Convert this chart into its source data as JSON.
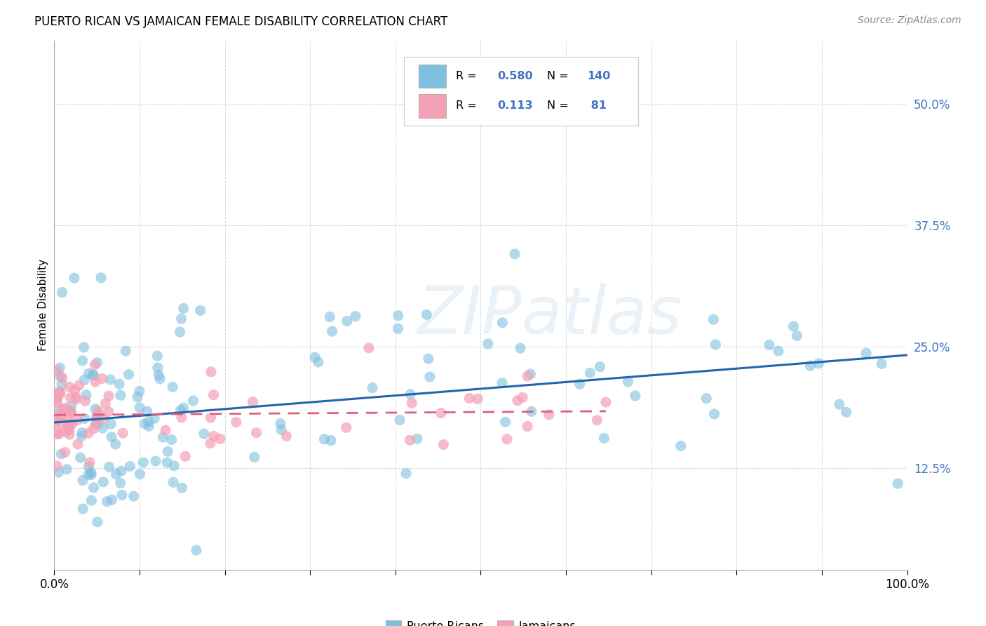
{
  "title": "PUERTO RICAN VS JAMAICAN FEMALE DISABILITY CORRELATION CHART",
  "source": "Source: ZipAtlas.com",
  "ylabel_label": "Female Disability",
  "ytick_values": [
    0.125,
    0.25,
    0.375,
    0.5
  ],
  "xlim": [
    0.0,
    1.0
  ],
  "ylim": [
    0.02,
    0.565
  ],
  "pr_color": "#7fbfdf",
  "ja_color": "#f4a0b5",
  "pr_line_color": "#2166ac",
  "ja_line_color": "#e0607a",
  "pr_R": 0.58,
  "pr_N": 140,
  "ja_R": 0.113,
  "ja_N": 81,
  "watermark": "ZIPatlas",
  "background_color": "#ffffff",
  "legend_blue": "#4472c4",
  "grid_color": "#cccccc"
}
